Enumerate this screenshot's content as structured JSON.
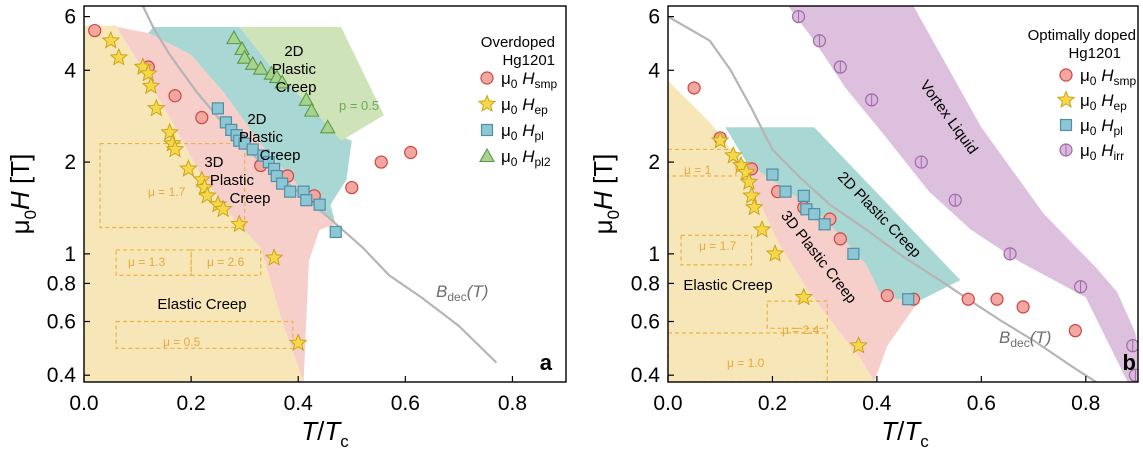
{
  "colors": {
    "elastic": "#f7e6b7",
    "plastic3d": "#f6cfcb",
    "plastic2d": "#a9d7d3",
    "plastic2d_pl2": "#cfe3b9",
    "liquid": "#dcc0dd",
    "bdec_line": "#b5b5b5",
    "smp": "#f2a8a2",
    "ep": "#f7d84a",
    "pl": "#8cc7d3",
    "pl2": "#a6d48e",
    "irr": "#dbb8dd",
    "dashed": "#f0b23c"
  },
  "chart_data": [
    {
      "type": "scatter",
      "panel_label": "a",
      "xlabel": "T/T_c",
      "ylabel": "μ0H [T]",
      "xlim": [
        0.0,
        0.9
      ],
      "ylim": [
        0.38,
        6.5
      ],
      "y_scale": "log",
      "x_ticks": [
        "0.0",
        "0.2",
        "0.4",
        "0.6",
        "0.8"
      ],
      "y_ticks": [
        "0.4",
        "0.6",
        "0.8",
        "1",
        "2",
        "4",
        "6"
      ],
      "legend_title": [
        "Overdoped",
        "Hg1201"
      ],
      "legend_position": "top-right",
      "series": [
        {
          "key": "smp",
          "name": "μ0 Hsmp",
          "marker": "circle",
          "points": [
            [
              0.02,
              5.4
            ],
            [
              0.12,
              4.1
            ],
            [
              0.17,
              3.3
            ],
            [
              0.22,
              2.8
            ],
            [
              0.33,
              1.95
            ],
            [
              0.38,
              1.8
            ],
            [
              0.43,
              1.55
            ],
            [
              0.5,
              1.65
            ],
            [
              0.555,
              2.0
            ],
            [
              0.61,
              2.15
            ]
          ]
        },
        {
          "key": "ep",
          "name": "μ0 Hep",
          "marker": "star",
          "points": [
            [
              0.05,
              5.0
            ],
            [
              0.065,
              4.4
            ],
            [
              0.11,
              4.1
            ],
            [
              0.12,
              3.9
            ],
            [
              0.125,
              3.55
            ],
            [
              0.135,
              3.0
            ],
            [
              0.16,
              2.5
            ],
            [
              0.165,
              2.3
            ],
            [
              0.17,
              2.2
            ],
            [
              0.195,
              1.9
            ],
            [
              0.22,
              1.75
            ],
            [
              0.225,
              1.65
            ],
            [
              0.23,
              1.55
            ],
            [
              0.25,
              1.45
            ],
            [
              0.26,
              1.4
            ],
            [
              0.29,
              1.25
            ],
            [
              0.355,
              0.97
            ],
            [
              0.4,
              0.51
            ]
          ]
        },
        {
          "key": "pl",
          "name": "μ0 Hpl",
          "marker": "square",
          "points": [
            [
              0.25,
              3.0
            ],
            [
              0.265,
              2.7
            ],
            [
              0.275,
              2.55
            ],
            [
              0.285,
              2.45
            ],
            [
              0.29,
              2.35
            ],
            [
              0.3,
              2.3
            ],
            [
              0.315,
              2.2
            ],
            [
              0.335,
              2.1
            ],
            [
              0.345,
              2.0
            ],
            [
              0.355,
              1.9
            ],
            [
              0.36,
              1.8
            ],
            [
              0.37,
              1.7
            ],
            [
              0.385,
              1.6
            ],
            [
              0.41,
              1.6
            ],
            [
              0.415,
              1.5
            ],
            [
              0.44,
              1.45
            ],
            [
              0.47,
              1.18
            ]
          ]
        },
        {
          "key": "pl2",
          "name": "μ0 Hpl2",
          "marker": "triangle",
          "points": [
            [
              0.28,
              5.1
            ],
            [
              0.295,
              4.7
            ],
            [
              0.3,
              4.4
            ],
            [
              0.315,
              4.2
            ],
            [
              0.33,
              4.05
            ],
            [
              0.35,
              3.9
            ],
            [
              0.36,
              3.8
            ],
            [
              0.37,
              3.65
            ],
            [
              0.415,
              3.2
            ],
            [
              0.425,
              2.95
            ],
            [
              0.455,
              2.6
            ]
          ]
        }
      ],
      "region_labels": [
        {
          "text": "2D Plastic Creep",
          "lines": [
            "2D",
            "Plastic",
            "Creep"
          ],
          "color": "#1a1a1a"
        },
        {
          "text": "2D Plastic Creep",
          "lines": [
            "2D",
            "Plastic",
            "Creep"
          ],
          "color": "#1a1a1a"
        },
        {
          "text": "3D Plastic Creep",
          "lines": [
            "3D",
            "Plastic",
            "Creep"
          ],
          "color": "#1a1a1a"
        },
        {
          "text": "Elastic Creep",
          "lines": [
            "Elastic Creep"
          ],
          "color": "#1a1a1a"
        }
      ],
      "annotations": [
        {
          "text": "p = 0.5",
          "color": "#6fa85a"
        },
        {
          "text": "μ = 1.7",
          "color": "#e8a93a"
        },
        {
          "text": "μ = 1.3",
          "color": "#e8a93a"
        },
        {
          "text": "μ = 2.6",
          "color": "#e8a93a"
        },
        {
          "text": "μ = 0.5",
          "color": "#e8a93a"
        }
      ],
      "bdec_label": "B_dec(T)",
      "bdec_curve": [
        [
          0.11,
          6.5
        ],
        [
          0.13,
          5.5
        ],
        [
          0.16,
          4.5
        ],
        [
          0.21,
          3.4
        ],
        [
          0.27,
          2.55
        ],
        [
          0.33,
          2.0
        ],
        [
          0.4,
          1.6
        ],
        [
          0.46,
          1.3
        ],
        [
          0.52,
          1.05
        ],
        [
          0.57,
          0.85
        ],
        [
          0.63,
          0.72
        ],
        [
          0.7,
          0.58
        ],
        [
          0.77,
          0.44
        ]
      ]
    },
    {
      "type": "scatter",
      "panel_label": "b",
      "xlabel": "T/T_c",
      "ylabel": "μ0H [T]",
      "xlim": [
        0.0,
        0.9
      ],
      "ylim": [
        0.38,
        6.5
      ],
      "y_scale": "log",
      "x_ticks": [
        "0.0",
        "0.2",
        "0.4",
        "0.6",
        "0.8"
      ],
      "y_ticks": [
        "0.4",
        "0.6",
        "0.8",
        "1",
        "2",
        "4",
        "6"
      ],
      "legend_title": [
        "Optimally doped",
        "Hg1201"
      ],
      "legend_position": "top-right",
      "series": [
        {
          "key": "smp",
          "name": "μ0 Hsmp",
          "marker": "circle",
          "points": [
            [
              0.05,
              3.5
            ],
            [
              0.1,
              2.4
            ],
            [
              0.16,
              1.9
            ],
            [
              0.21,
              1.6
            ],
            [
              0.26,
              1.42
            ],
            [
              0.31,
              1.3
            ],
            [
              0.33,
              1.12
            ],
            [
              0.42,
              0.73
            ],
            [
              0.47,
              0.71
            ],
            [
              0.575,
              0.71
            ],
            [
              0.63,
              0.71
            ],
            [
              0.68,
              0.67
            ],
            [
              0.78,
              0.56
            ]
          ]
        },
        {
          "key": "ep",
          "name": "μ0 Hep",
          "marker": "star",
          "points": [
            [
              0.1,
              2.35
            ],
            [
              0.125,
              2.1
            ],
            [
              0.14,
              1.95
            ],
            [
              0.15,
              1.85
            ],
            [
              0.155,
              1.72
            ],
            [
              0.16,
              1.55
            ],
            [
              0.165,
              1.42
            ],
            [
              0.18,
              1.2
            ],
            [
              0.205,
              1.0
            ],
            [
              0.26,
              0.72
            ],
            [
              0.365,
              0.5
            ]
          ]
        },
        {
          "key": "pl",
          "name": "μ0 Hpl",
          "marker": "square",
          "points": [
            [
              0.2,
              1.82
            ],
            [
              0.225,
              1.6
            ],
            [
              0.26,
              1.55
            ],
            [
              0.265,
              1.4
            ],
            [
              0.28,
              1.35
            ],
            [
              0.3,
              1.25
            ],
            [
              0.355,
              1.0
            ],
            [
              0.46,
              0.71
            ]
          ]
        },
        {
          "key": "irr",
          "name": "μ0 Hirr",
          "marker": "circle-cross",
          "points": [
            [
              0.25,
              6.0
            ],
            [
              0.29,
              5.0
            ],
            [
              0.33,
              4.1
            ],
            [
              0.39,
              3.2
            ],
            [
              0.485,
              2.0
            ],
            [
              0.55,
              1.5
            ],
            [
              0.655,
              1.0
            ],
            [
              0.79,
              0.78
            ],
            [
              0.89,
              0.5
            ],
            [
              0.895,
              0.4
            ]
          ]
        }
      ],
      "region_labels": [
        {
          "text": "Vortex Liquid",
          "lines": [
            "Vortex Liquid"
          ],
          "color": "#1a1a1a"
        },
        {
          "text": "2D Plastic Creep",
          "lines": [
            "2D Plastic Creep"
          ],
          "color": "#1a1a1a"
        },
        {
          "text": "3D Plastic Creep",
          "lines": [
            "3D Plastic Creep"
          ],
          "color": "#1a1a1a"
        },
        {
          "text": "Elastic Creep",
          "lines": [
            "Elastic Creep"
          ],
          "color": "#1a1a1a"
        }
      ],
      "annotations": [
        {
          "text": "μ = 1",
          "color": "#e8a93a"
        },
        {
          "text": "μ = 1.7",
          "color": "#e8a93a"
        },
        {
          "text": "μ = 2.4",
          "color": "#e8a93a"
        },
        {
          "text": "μ = 1.0",
          "color": "#e8a93a"
        }
      ],
      "bdec_label": "B_dec(T)",
      "bdec_curve": [
        [
          0.0,
          6.0
        ],
        [
          0.08,
          5.0
        ],
        [
          0.12,
          4.0
        ],
        [
          0.16,
          3.0
        ],
        [
          0.2,
          2.2
        ],
        [
          0.25,
          1.8
        ],
        [
          0.31,
          1.45
        ],
        [
          0.38,
          1.2
        ],
        [
          0.45,
          0.98
        ],
        [
          0.52,
          0.82
        ],
        [
          0.58,
          0.7
        ],
        [
          0.64,
          0.6
        ],
        [
          0.7,
          0.52
        ],
        [
          0.78,
          0.42
        ],
        [
          0.82,
          0.38
        ]
      ]
    }
  ]
}
